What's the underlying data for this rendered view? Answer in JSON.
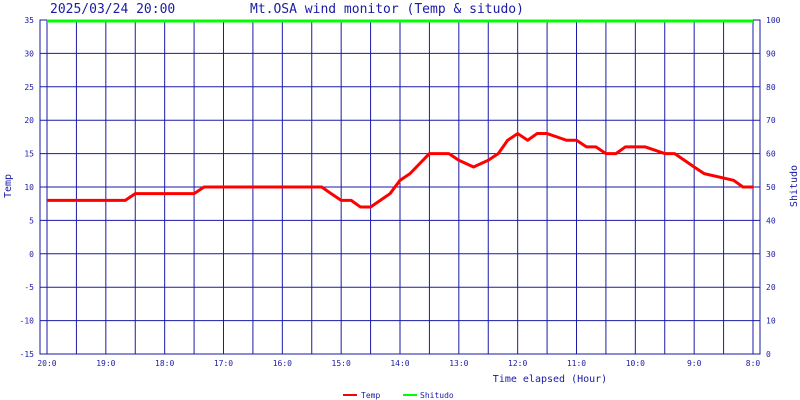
{
  "header": {
    "datetime": "2025/03/24 20:00",
    "title": "Mt.OSA wind monitor (Temp & situdo)"
  },
  "chart_data": {
    "type": "line",
    "title": "Mt.OSA wind monitor (Temp & situdo)",
    "xlabel": "Time elapsed (Hour)",
    "ylabel_left": "Temp",
    "ylabel_right": "Shitudo",
    "ylim_left": [
      -15,
      35
    ],
    "ylim_right": [
      0,
      100
    ],
    "yticks_left": [
      35,
      30,
      25,
      20,
      15,
      10,
      5,
      0,
      -5,
      -10,
      -15
    ],
    "yticks_right": [
      100,
      90,
      80,
      70,
      60,
      50,
      40,
      30,
      20,
      10,
      0
    ],
    "xticks": [
      "20:0",
      "19:0",
      "18:0",
      "17:0",
      "16:0",
      "15:0",
      "14:0",
      "13:0",
      "12:0",
      "11:0",
      "10:0",
      "9:0",
      "8:0"
    ],
    "grid": true,
    "legend_position": "bottom",
    "colors": {
      "temp": "#ff0000",
      "shitudo": "#00ff00",
      "grid": "#1a1aa6",
      "text": "#1a1aa6"
    },
    "series": [
      {
        "name": "Temp",
        "axis": "left",
        "x_hours_elapsed": [
          0,
          1.33,
          1.5,
          2.5,
          2.67,
          4.67,
          4.83,
          5.0,
          5.17,
          5.33,
          5.5,
          5.83,
          6.0,
          6.17,
          6.5,
          6.83,
          7.0,
          7.25,
          7.5,
          7.67,
          7.83,
          8.0,
          8.17,
          8.33,
          8.5,
          8.83,
          9.0,
          9.17,
          9.33,
          9.5,
          9.67,
          9.83,
          10.0,
          10.17,
          10.5,
          10.67,
          11.0,
          11.17,
          11.67,
          11.83,
          12.0
        ],
        "values": [
          8,
          8,
          9,
          9,
          10,
          10,
          9,
          8,
          8,
          7,
          7,
          9,
          11,
          12,
          15,
          15,
          14,
          13,
          14,
          15,
          17,
          18,
          17,
          18,
          18,
          17,
          17,
          16,
          16,
          15,
          15,
          16,
          16,
          16,
          15,
          15,
          13,
          12,
          11,
          10,
          10
        ]
      },
      {
        "name": "Shitudo",
        "axis": "right",
        "x_hours_elapsed": [
          0,
          12
        ],
        "values": [
          100,
          100
        ]
      }
    ]
  }
}
